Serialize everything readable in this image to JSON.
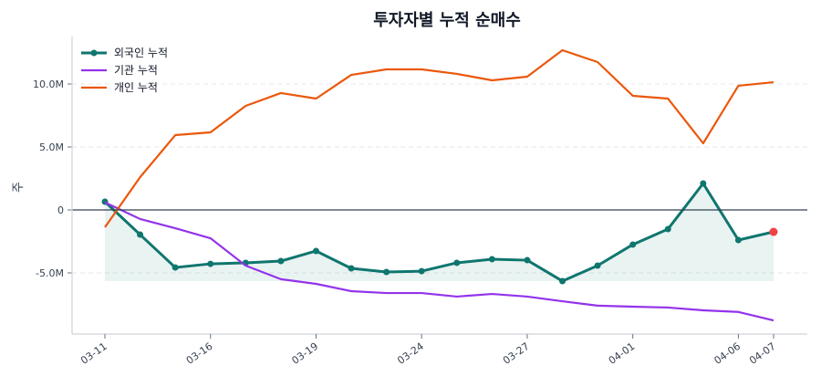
{
  "chart_data": {
    "type": "line",
    "title": "투자자별 누적 순매수",
    "xlabel": "",
    "ylabel": "주",
    "x": [
      "03-11",
      "03-12",
      "03-13",
      "03-16",
      "03-17",
      "03-18",
      "03-19",
      "03-20",
      "03-23",
      "03-24",
      "03-25",
      "03-26",
      "03-27",
      "03-30",
      "03-31",
      "04-01",
      "04-02",
      "04-03",
      "04-06",
      "04-07"
    ],
    "xticks": [
      "03-11",
      "03-16",
      "03-19",
      "03-24",
      "03-27",
      "04-01",
      "04-06",
      "04-07"
    ],
    "yticks": [
      {
        "value": 10000000,
        "label": "10.0M"
      },
      {
        "value": 5000000,
        "label": "5.0M"
      },
      {
        "value": 0,
        "label": "0"
      },
      {
        "value": -5000000,
        "label": "-5.0M"
      }
    ],
    "ylim": [
      -9800000,
      13800000
    ],
    "grid": "horizontal dashed",
    "legend": "top-left",
    "series": [
      {
        "name": "외국인 누적",
        "color": "#0f766e",
        "markers": true,
        "fill": true,
        "last_point_color": "#ef4444",
        "values": [
          650000,
          -1960000,
          -4570000,
          -4280000,
          -4200000,
          -4060000,
          -3260000,
          -4640000,
          -4930000,
          -4860000,
          -4200000,
          -3910000,
          -3990000,
          -5650000,
          -4420000,
          -2750000,
          -1520000,
          2100000,
          -2390000,
          -1740000
        ]
      },
      {
        "name": "기관 누적",
        "color": "#9333ea",
        "values": [
          600000,
          -720000,
          -1450000,
          -2250000,
          -4420000,
          -5500000,
          -5870000,
          -6450000,
          -6600000,
          -6600000,
          -6880000,
          -6670000,
          -6880000,
          -7250000,
          -7600000,
          -7680000,
          -7750000,
          -7970000,
          -8100000,
          -8770000
        ]
      },
      {
        "name": "개인 누적",
        "color": "#ea580c",
        "values": [
          -1380000,
          2600000,
          5940000,
          6160000,
          8260000,
          9280000,
          8840000,
          10720000,
          11160000,
          11160000,
          10800000,
          10290000,
          10580000,
          12680000,
          11740000,
          9060000,
          8840000,
          5290000,
          9860000,
          10140000
        ]
      }
    ]
  }
}
